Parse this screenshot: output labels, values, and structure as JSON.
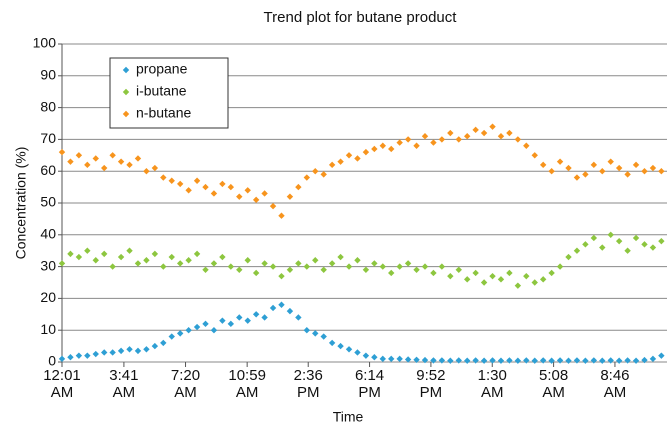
{
  "chart_data": {
    "type": "scatter",
    "title": "Trend plot for butane product",
    "x_label": "Time",
    "y_label": "Concentration (%)",
    "x": [
      0,
      30,
      60,
      90,
      120,
      150,
      180,
      210,
      240,
      270,
      300,
      330,
      360,
      390,
      420,
      450,
      480,
      510,
      540,
      570,
      600,
      630,
      660,
      690,
      720,
      750,
      780,
      810,
      840,
      870,
      900,
      930,
      960,
      990,
      1020,
      1050,
      1080,
      1110,
      1140,
      1170,
      1200,
      1230,
      1260,
      1290,
      1320,
      1350,
      1380,
      1410,
      1440,
      1470,
      1500,
      1530,
      1560,
      1590,
      1620,
      1650,
      1680,
      1710,
      1740,
      1770,
      1800,
      1830,
      1860,
      1890,
      1920,
      1950,
      1980,
      2010,
      2040,
      2070,
      2100,
      2130
    ],
    "series": [
      {
        "name": "propane",
        "color": "#2e9fd4",
        "values": [
          1,
          1.5,
          2,
          2,
          2.5,
          3,
          3,
          3.5,
          4,
          3.5,
          4,
          5,
          6,
          8,
          9,
          10,
          11,
          12,
          10,
          13,
          12,
          14,
          13,
          15,
          14,
          17,
          18,
          16,
          14,
          10,
          9,
          8,
          6,
          5,
          4,
          3,
          2,
          1.5,
          1,
          1,
          1,
          0.8,
          0.7,
          0.6,
          0.5,
          0.5,
          0.4,
          0.5,
          0.4,
          0.5,
          0.4,
          0.5,
          0.4,
          0.5,
          0.4,
          0.5,
          0.4,
          0.5,
          0.4,
          0.5,
          0.4,
          0.5,
          0.4,
          0.5,
          0.4,
          0.5,
          0.4,
          0.5,
          0.4,
          0.6,
          1,
          2
        ]
      },
      {
        "name": "i-butane",
        "color": "#8dc63f",
        "values": [
          31,
          34,
          33,
          35,
          32,
          34,
          30,
          33,
          35,
          31,
          32,
          34,
          30,
          33,
          31,
          32,
          34,
          29,
          31,
          33,
          30,
          29,
          32,
          28,
          31,
          30,
          27,
          29,
          31,
          30,
          32,
          29,
          31,
          33,
          30,
          32,
          29,
          31,
          30,
          28,
          30,
          31,
          29,
          30,
          28,
          30,
          27,
          29,
          26,
          28,
          25,
          27,
          26,
          28,
          24,
          27,
          25,
          26,
          28,
          30,
          33,
          35,
          37,
          39,
          36,
          40,
          38,
          35,
          39,
          37,
          36,
          38
        ]
      },
      {
        "name": "n-butane",
        "color": "#f7941d",
        "values": [
          66,
          63,
          65,
          62,
          64,
          61,
          65,
          63,
          62,
          64,
          60,
          61,
          58,
          57,
          56,
          54,
          57,
          55,
          53,
          56,
          55,
          52,
          54,
          51,
          53,
          49,
          46,
          52,
          55,
          58,
          60,
          59,
          62,
          63,
          65,
          64,
          66,
          67,
          68,
          67,
          69,
          70,
          68,
          71,
          69,
          70,
          72,
          70,
          71,
          73,
          72,
          74,
          71,
          72,
          70,
          68,
          65,
          62,
          60,
          63,
          61,
          58,
          59,
          62,
          60,
          63,
          61,
          59,
          62,
          60,
          61,
          60
        ]
      }
    ],
    "xlim": [
      0,
      2150
    ],
    "xticks": [
      {
        "value": 0,
        "label": "12:01 AM"
      },
      {
        "value": 220,
        "label": "3:41 AM"
      },
      {
        "value": 439,
        "label": "7:20 AM"
      },
      {
        "value": 658,
        "label": "10:59 AM"
      },
      {
        "value": 875,
        "label": "2:36 PM"
      },
      {
        "value": 1093,
        "label": "6:14 PM"
      },
      {
        "value": 1311,
        "label": "9:52 PM"
      },
      {
        "value": 1529,
        "label": "1:30 AM"
      },
      {
        "value": 1747,
        "label": "5:08 AM"
      },
      {
        "value": 1965,
        "label": "8:46 AM"
      }
    ],
    "ylim": [
      0,
      100
    ],
    "yticks": [
      0,
      10,
      20,
      30,
      40,
      50,
      60,
      70,
      80,
      90,
      100
    ],
    "grid": true,
    "legend": "upper left"
  }
}
